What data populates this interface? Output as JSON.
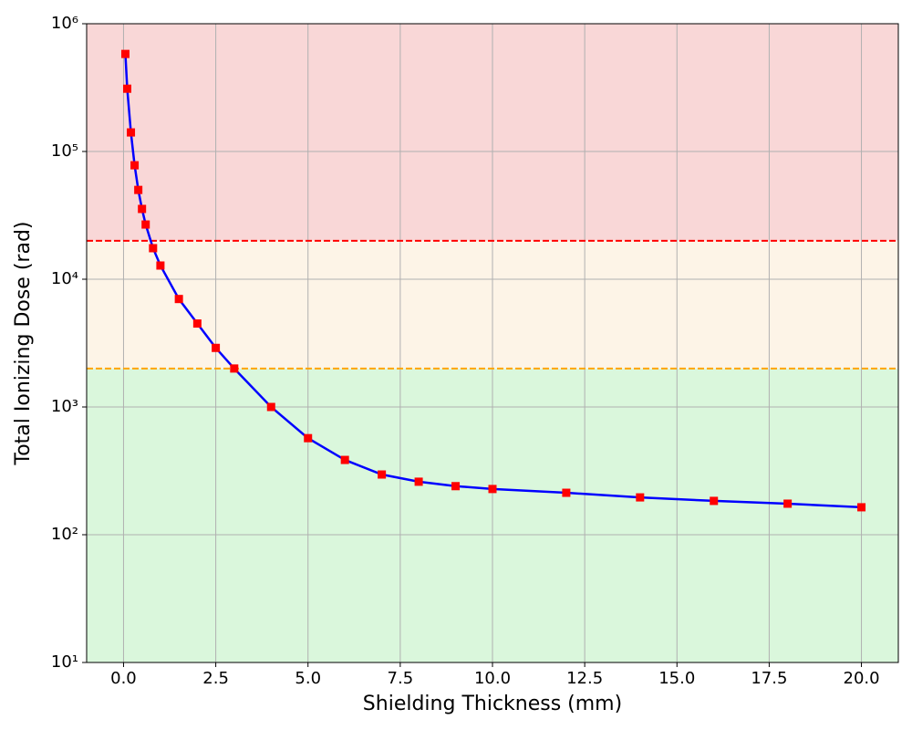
{
  "chart_data": {
    "type": "line",
    "x_label": "Shielding Thickness (mm)",
    "y_label": "Total Ionizing Dose (rad)",
    "x": [
      0.05,
      0.1,
      0.2,
      0.3,
      0.4,
      0.5,
      0.6,
      0.8,
      1.0,
      1.5,
      2.0,
      2.5,
      3.0,
      4,
      5,
      6,
      7,
      8,
      9,
      10,
      12,
      14,
      16,
      18,
      20
    ],
    "series": [
      {
        "color": "blue",
        "marker_color": "red",
        "values": [
          580000,
          310000,
          141000,
          78000,
          50000,
          35500,
          26800,
          17500,
          12800,
          7000,
          4500,
          2900,
          2000,
          1000,
          570,
          385,
          296,
          260,
          240,
          228,
          213,
          196,
          184,
          175,
          164
        ]
      }
    ],
    "xlim": [
      -1,
      21
    ],
    "ylim": [
      10,
      1000000
    ],
    "ylog": true,
    "grid": true,
    "xticks": [
      {
        "value": 0,
        "label": "0.0"
      },
      2.5,
      {
        "value": 5,
        "label": "5.0"
      },
      7.5,
      {
        "value": 10,
        "label": "10.0"
      },
      12.5,
      {
        "value": 15,
        "label": "15.0"
      },
      17.5,
      {
        "value": 20,
        "label": "20.0"
      }
    ],
    "yticks": [
      {
        "value": 10,
        "label": "10¹"
      },
      {
        "value": 100,
        "label": "10²"
      },
      {
        "value": 1000,
        "label": "10³"
      },
      {
        "value": 10000,
        "label": "10⁴"
      },
      {
        "value": 100000,
        "label": "10⁵"
      },
      {
        "value": 1000000,
        "label": "10⁶"
      }
    ],
    "bands": [
      {
        "from": 20000,
        "to": 1000000,
        "color": "#f9d7d7"
      },
      {
        "from": 2000,
        "to": 20000,
        "color": "#fdf4e7"
      },
      {
        "from": 10,
        "to": 2000,
        "color": "#daf7dc"
      }
    ],
    "hlines": [
      {
        "value": 20000,
        "color": "red"
      },
      {
        "value": 2000,
        "color": "orange"
      }
    ]
  }
}
